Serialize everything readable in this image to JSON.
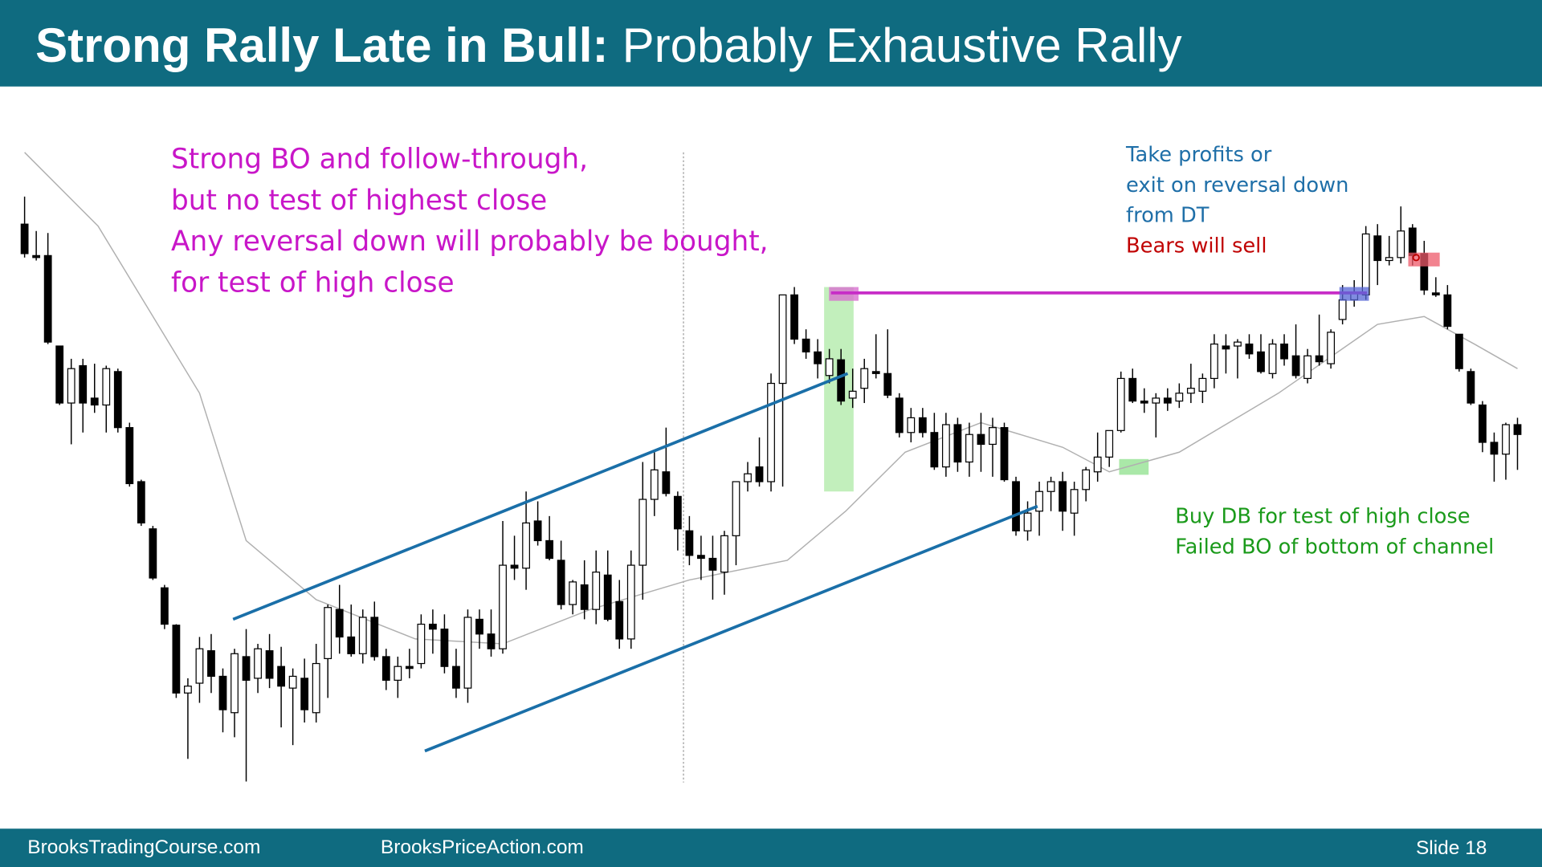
{
  "header": {
    "title_bold": "Strong Rally Late in Bull:",
    "title_rest": "Probably Exhaustive Rally"
  },
  "chart_data": {
    "type": "candlestick",
    "ylim": [
      100,
      750
    ],
    "open": [
      672,
      640,
      640,
      548,
      490,
      528,
      495,
      488,
      522,
      465,
      410,
      362,
      302,
      264,
      195,
      205,
      238,
      212,
      175,
      232,
      210,
      238,
      222,
      200,
      210,
      175,
      230,
      280,
      252,
      235,
      272,
      232,
      208,
      222,
      225,
      265,
      260,
      222,
      200,
      270,
      255,
      240,
      325,
      322,
      370,
      350,
      330,
      285,
      305,
      280,
      315,
      288,
      250,
      325,
      392,
      420,
      395,
      360,
      335,
      332,
      318,
      355,
      410,
      425,
      410,
      510,
      600,
      555,
      542,
      518,
      534,
      495,
      505,
      522,
      520,
      495,
      460,
      475,
      460,
      425,
      468,
      430,
      458,
      448,
      465,
      410,
      360,
      380,
      400,
      410,
      378,
      402,
      420,
      435,
      462,
      515,
      492,
      490,
      495,
      492,
      500,
      502,
      515,
      548,
      548,
      550,
      542,
      520,
      550,
      538,
      515,
      538,
      530,
      575,
      595,
      600,
      660,
      635,
      638,
      668,
      642,
      602,
      600,
      560,
      522,
      488,
      450,
      438,
      468
    ],
    "high": [
      700,
      665,
      663,
      548,
      535,
      535,
      530,
      528,
      525,
      470,
      412,
      365,
      305,
      265,
      210,
      252,
      255,
      220,
      240,
      260,
      245,
      255,
      242,
      220,
      230,
      245,
      285,
      305,
      285,
      280,
      288,
      240,
      232,
      240,
      275,
      280,
      275,
      240,
      280,
      280,
      280,
      370,
      355,
      400,
      390,
      375,
      350,
      310,
      330,
      340,
      340,
      310,
      340,
      430,
      442,
      465,
      400,
      375,
      355,
      355,
      360,
      410,
      430,
      455,
      520,
      600,
      608,
      565,
      555,
      545,
      545,
      525,
      535,
      560,
      565,
      500,
      485,
      485,
      480,
      480,
      475,
      470,
      480,
      475,
      470,
      415,
      390,
      410,
      415,
      420,
      410,
      425,
      460,
      460,
      522,
      525,
      505,
      500,
      505,
      510,
      530,
      520,
      560,
      560,
      555,
      560,
      560,
      555,
      560,
      570,
      545,
      580,
      565,
      610,
      615,
      670,
      672,
      660,
      690,
      672,
      655,
      618,
      610,
      560,
      525,
      492,
      460,
      470,
      475
    ],
    "low": [
      638,
      635,
      550,
      488,
      448,
      460,
      480,
      460,
      460,
      405,
      365,
      310,
      260,
      190,
      128,
      185,
      195,
      155,
      150,
      105,
      195,
      200,
      160,
      142,
      165,
      165,
      190,
      235,
      232,
      225,
      228,
      198,
      190,
      210,
      220,
      235,
      215,
      190,
      185,
      240,
      232,
      235,
      310,
      300,
      345,
      330,
      280,
      275,
      270,
      265,
      268,
      240,
      240,
      290,
      375,
      395,
      340,
      325,
      310,
      290,
      295,
      325,
      400,
      405,
      400,
      405,
      550,
      535,
      515,
      510,
      488,
      485,
      490,
      515,
      495,
      455,
      450,
      455,
      422,
      415,
      420,
      415,
      420,
      415,
      410,
      355,
      350,
      355,
      380,
      360,
      355,
      390,
      410,
      425,
      460,
      490,
      480,
      455,
      482,
      485,
      490,
      490,
      505,
      520,
      515,
      535,
      520,
      515,
      528,
      515,
      510,
      528,
      525,
      570,
      588,
      595,
      610,
      630,
      632,
      630,
      600,
      598,
      565,
      522,
      488,
      440,
      410,
      412,
      422
    ],
    "close": [
      642,
      638,
      552,
      490,
      525,
      490,
      488,
      525,
      465,
      408,
      368,
      312,
      265,
      195,
      202,
      240,
      212,
      178,
      235,
      208,
      240,
      210,
      202,
      212,
      178,
      225,
      282,
      252,
      235,
      272,
      232,
      208,
      222,
      220,
      265,
      260,
      222,
      200,
      272,
      255,
      240,
      325,
      322,
      368,
      350,
      332,
      285,
      308,
      280,
      318,
      270,
      250,
      325,
      392,
      422,
      398,
      362,
      335,
      332,
      320,
      355,
      410,
      418,
      410,
      510,
      600,
      555,
      542,
      530,
      535,
      492,
      502,
      525,
      520,
      498,
      460,
      475,
      460,
      425,
      468,
      430,
      458,
      448,
      465,
      412,
      360,
      378,
      400,
      410,
      380,
      402,
      422,
      435,
      462,
      515,
      492,
      490,
      495,
      490,
      500,
      505,
      515,
      550,
      545,
      552,
      540,
      522,
      550,
      535,
      518,
      538,
      532,
      562,
      595,
      602,
      662,
      635,
      638,
      665,
      640,
      605,
      600,
      568,
      525,
      490,
      450,
      438,
      468,
      458
    ],
    "moving_average": {
      "x": [
        0,
        6.3,
        15,
        19,
        25,
        33.5,
        41,
        48.5,
        57,
        65.4,
        70.4,
        75.5,
        82,
        89,
        93,
        99,
        107.5,
        116,
        120,
        124.3,
        128
      ],
      "values": [
        745,
        670,
        500,
        350,
        290,
        250,
        245,
        280,
        310,
        330,
        380,
        440,
        470,
        445,
        420,
        440,
        500,
        570,
        578,
        550,
        525
      ]
    }
  },
  "annotations": {
    "magenta": [
      "Strong BO and follow-through,",
      "but no test of highest close",
      "Any reversal down will probably be bought,",
      "for test of high close"
    ],
    "blue": [
      "Take profits or",
      "exit on reversal down",
      "from DT"
    ],
    "red": "Bears will sell",
    "green": [
      "Buy DB for test of high close",
      "Failed BO of bottom of channel"
    ]
  },
  "footer": {
    "left": "BrooksTradingCourse.com",
    "middle": "BrooksPriceAction.com",
    "slide": "Slide  18"
  }
}
